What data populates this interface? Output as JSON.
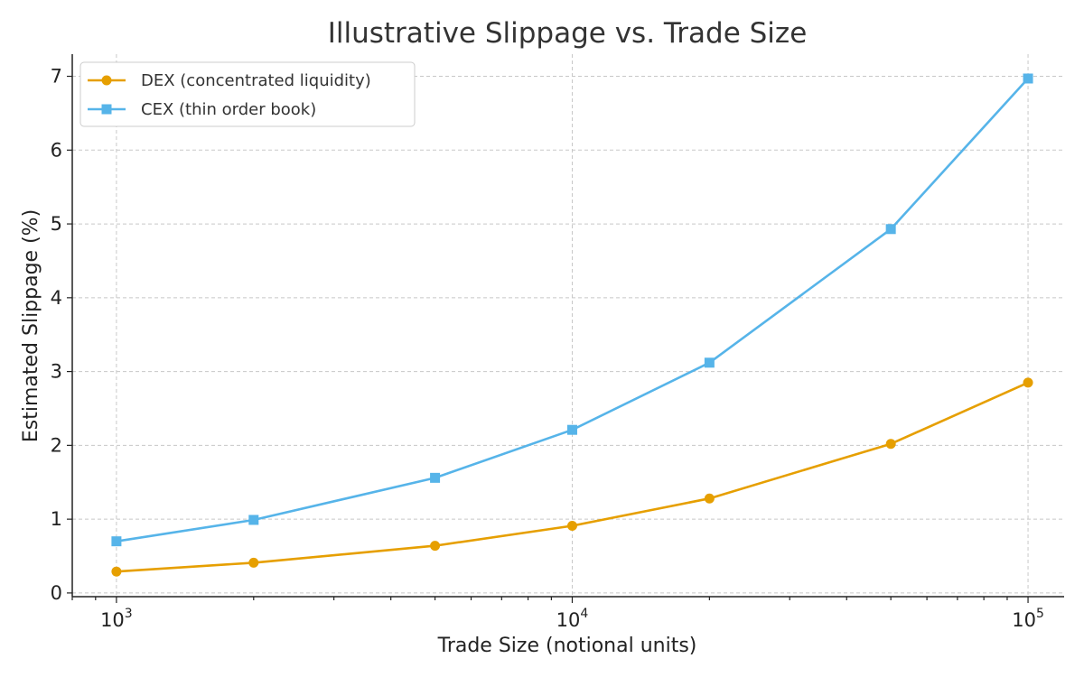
{
  "chart_data": {
    "type": "line",
    "title": "Illustrative Slippage vs. Trade Size",
    "xlabel": "Trade Size (notional units)",
    "ylabel": "Estimated Slippage (%)",
    "x_scale": "log",
    "xlim": [
      800,
      120000
    ],
    "ylim": [
      -0.05,
      7.3
    ],
    "x_ticks": [
      {
        "value": 1000,
        "base": "10",
        "exp": "3"
      },
      {
        "value": 10000,
        "base": "10",
        "exp": "4"
      },
      {
        "value": 100000,
        "base": "10",
        "exp": "5"
      }
    ],
    "y_ticks": [
      0,
      1,
      2,
      3,
      4,
      5,
      6,
      7
    ],
    "grid": true,
    "legend_position": "top-left",
    "x": [
      1000,
      2000,
      5000,
      10000,
      20000,
      50000,
      100000
    ],
    "series": [
      {
        "name": "DEX (concentrated liquidity)",
        "color": "#E69F00",
        "marker": "circle",
        "values": [
          0.29,
          0.41,
          0.64,
          0.91,
          1.28,
          2.02,
          2.85
        ]
      },
      {
        "name": "CEX (thin order book)",
        "color": "#56B4E9",
        "marker": "square",
        "values": [
          0.7,
          0.99,
          1.56,
          2.21,
          3.12,
          4.93,
          6.97
        ]
      }
    ]
  }
}
